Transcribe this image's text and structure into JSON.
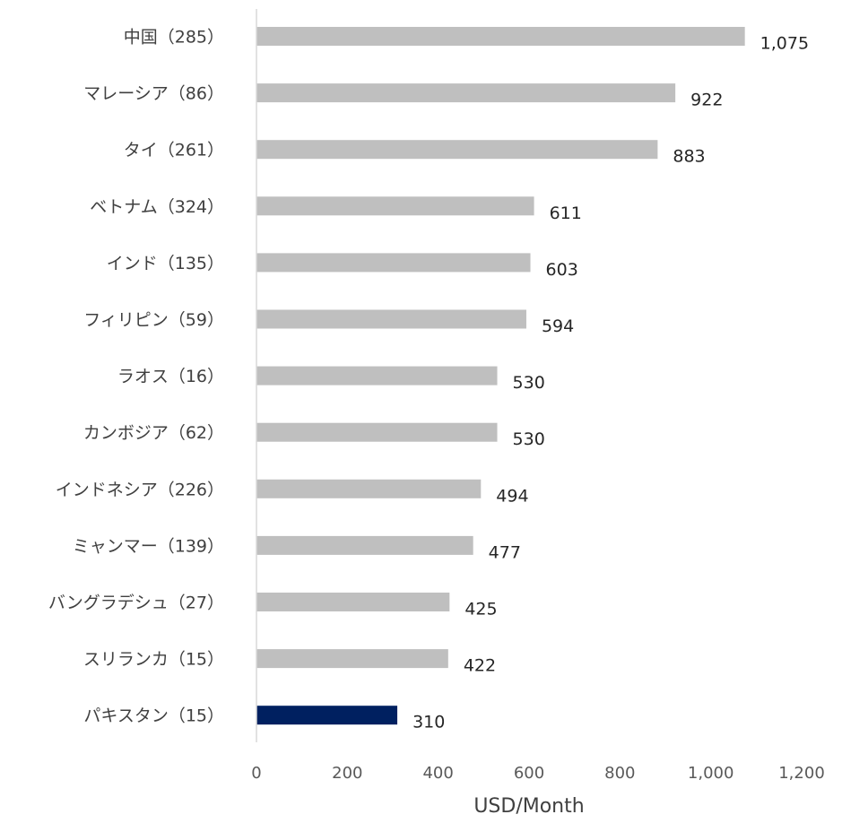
{
  "chart_data": {
    "type": "bar",
    "orientation": "horizontal",
    "title": "",
    "xlabel": "USD/Month",
    "ylabel": "",
    "xlim": [
      0,
      1200
    ],
    "xticks": [
      0,
      200,
      400,
      600,
      800,
      1000,
      1200
    ],
    "xtick_labels": [
      "0",
      "200",
      "400",
      "600",
      "800",
      "1,000",
      "1,200"
    ],
    "grid": false,
    "legend": "none",
    "categories": [
      "中国（285）",
      "マレーシア（86）",
      "タイ（261）",
      "ベトナム（324）",
      "インド（135）",
      "フィリピン（59）",
      "ラオス（16）",
      "カンボジア（62）",
      "インドネシア（226）",
      "ミャンマー（139）",
      "バングラデシュ（27）",
      "スリランカ（15）",
      "パキスタン（15）"
    ],
    "values": [
      1075,
      922,
      883,
      611,
      603,
      594,
      530,
      530,
      494,
      477,
      425,
      422,
      310
    ],
    "value_labels": [
      "1,075",
      "922",
      "883",
      "611",
      "603",
      "594",
      "530",
      "530",
      "494",
      "477",
      "425",
      "422",
      "310"
    ],
    "highlight_index": 12,
    "colors": {
      "bar": "#bfbfbf",
      "highlight": "#002060",
      "axis": "#d9d9d9"
    }
  }
}
